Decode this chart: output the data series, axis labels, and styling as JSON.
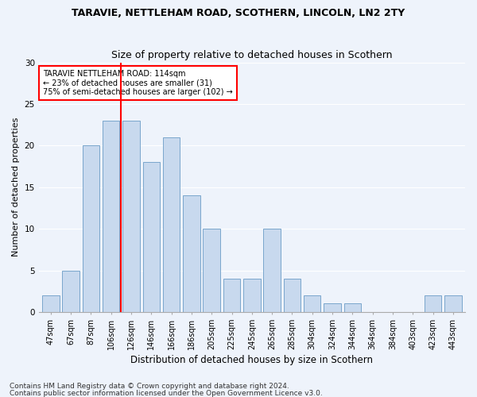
{
  "title1": "TARAVIE, NETTLEHAM ROAD, SCOTHERN, LINCOLN, LN2 2TY",
  "title2": "Size of property relative to detached houses in Scothern",
  "xlabel": "Distribution of detached houses by size in Scothern",
  "ylabel": "Number of detached properties",
  "categories": [
    "47sqm",
    "67sqm",
    "87sqm",
    "106sqm",
    "126sqm",
    "146sqm",
    "166sqm",
    "186sqm",
    "205sqm",
    "225sqm",
    "245sqm",
    "265sqm",
    "285sqm",
    "304sqm",
    "324sqm",
    "344sqm",
    "364sqm",
    "384sqm",
    "403sqm",
    "423sqm",
    "443sqm"
  ],
  "values": [
    2,
    5,
    20,
    23,
    23,
    18,
    21,
    14,
    10,
    4,
    4,
    10,
    4,
    2,
    1,
    1,
    0,
    0,
    0,
    2,
    2
  ],
  "bar_color": "#c8d9ee",
  "bar_edge_color": "#7aa6cc",
  "red_line_x": 3.5,
  "annotation_title": "TARAVIE NETTLEHAM ROAD: 114sqm",
  "annotation_line2": "← 23% of detached houses are smaller (31)",
  "annotation_line3": "75% of semi-detached houses are larger (102) →",
  "ylim": [
    0,
    30
  ],
  "yticks": [
    0,
    5,
    10,
    15,
    20,
    25,
    30
  ],
  "footnote1": "Contains HM Land Registry data © Crown copyright and database right 2024.",
  "footnote2": "Contains public sector information licensed under the Open Government Licence v3.0.",
  "fig_bg_color": "#eef3fb",
  "ax_bg_color": "#eef3fb",
  "grid_color": "#ffffff",
  "title1_fontsize": 9,
  "title2_fontsize": 9,
  "xlabel_fontsize": 8.5,
  "ylabel_fontsize": 8,
  "tick_fontsize": 7,
  "annotation_fontsize": 7,
  "footnote_fontsize": 6.5
}
